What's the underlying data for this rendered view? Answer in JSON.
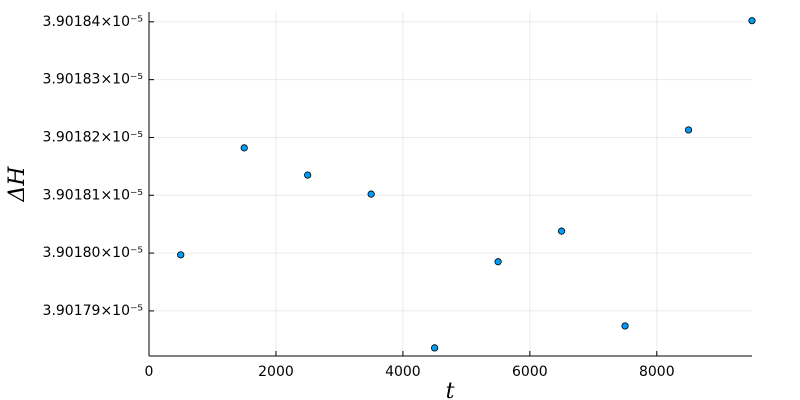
{
  "chart_data": {
    "type": "scatter",
    "x_label": "t",
    "y_label": "ΔH",
    "x": [
      500,
      1500,
      2500,
      3500,
      4500,
      5500,
      6500,
      7500,
      8500,
      9500
    ],
    "series": [
      {
        "color": "#009af9",
        "values": [
          3.9017997e-05,
          3.9018182e-05,
          3.9018135e-05,
          3.9018102e-05,
          3.9017836e-05,
          3.9017985e-05,
          3.9018038e-05,
          3.9017874e-05,
          3.9018213e-05,
          3.9018402e-05
        ]
      }
    ],
    "xlim": [
      0,
      9500
    ],
    "xticks": [
      0,
      2000,
      4000,
      6000,
      8000
    ],
    "ylim": [
      3.9017822e-05,
      3.9018417e-05
    ],
    "yticks": [
      {
        "value": 3.90179e-05,
        "label": "3.90179×10⁻⁵"
      },
      {
        "value": 3.9018e-05,
        "label": "3.90180×10⁻⁵"
      },
      {
        "value": 3.90181e-05,
        "label": "3.90181×10⁻⁵"
      },
      {
        "value": 3.90182e-05,
        "label": "3.90182×10⁻⁵"
      },
      {
        "value": 3.90183e-05,
        "label": "3.90183×10⁻⁵"
      },
      {
        "value": 3.90184e-05,
        "label": "3.90184×10⁻⁵"
      }
    ],
    "grid": true
  }
}
